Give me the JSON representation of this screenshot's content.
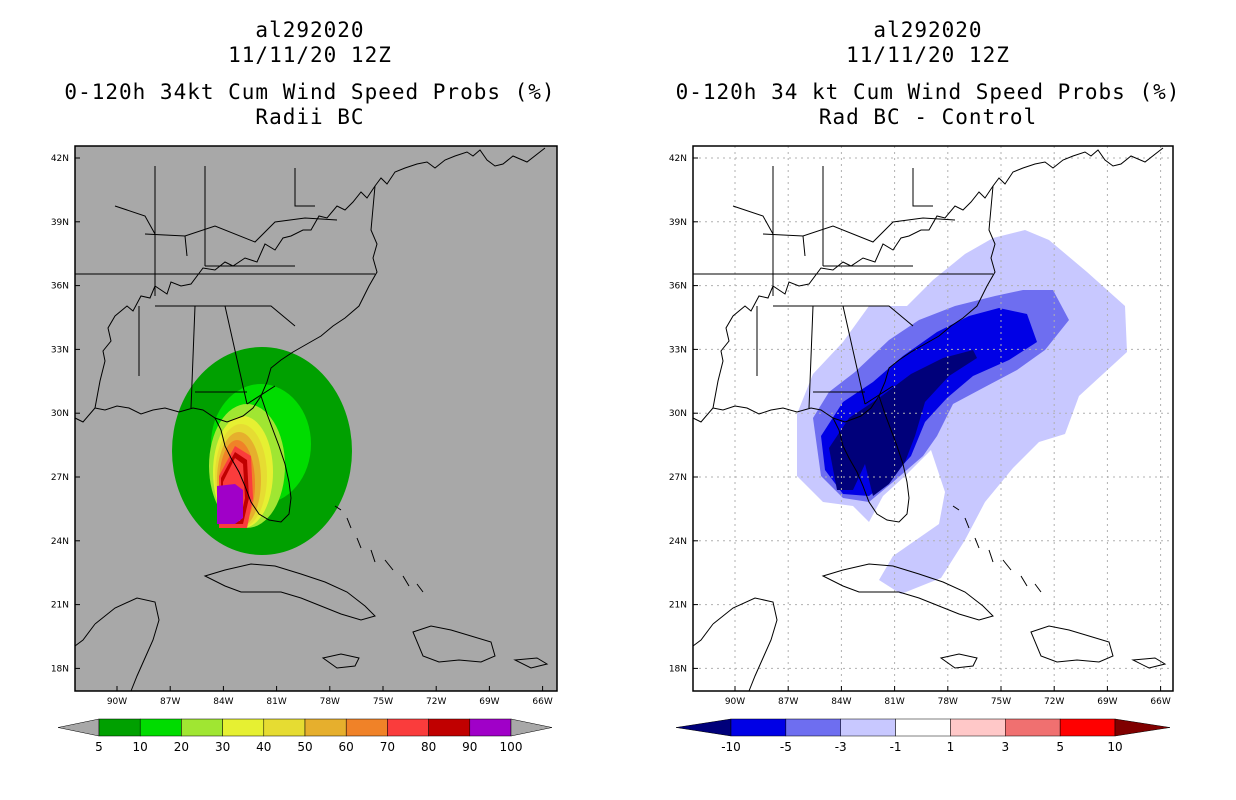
{
  "left_panel": {
    "storm_id": "al292020",
    "datetime": "11/11/20 12Z",
    "title": "0-120h 34kt Cum Wind Speed Probs (%)",
    "subtitle": "Radii BC",
    "background_color": "#a8a8a8",
    "lat_labels": [
      "42N",
      "39N",
      "36N",
      "33N",
      "30N",
      "27N",
      "24N",
      "21N",
      "18N"
    ],
    "lon_labels": [
      "90W",
      "87W",
      "84W",
      "81W",
      "78W",
      "75W",
      "72W",
      "69W",
      "66W"
    ],
    "colorbar": {
      "colors": [
        "#00a000",
        "#00dc00",
        "#a0e632",
        "#e6f032",
        "#e6dc32",
        "#e6af2d",
        "#f08228",
        "#fa3c3c",
        "#c00000",
        "#a000c8"
      ],
      "labels": [
        "5",
        "10",
        "20",
        "30",
        "40",
        "50",
        "60",
        "70",
        "80",
        "90",
        "100"
      ],
      "under_color": "#a8a8a8",
      "over_color": "#a8a8a8"
    }
  },
  "right_panel": {
    "storm_id": "al292020",
    "datetime": "11/11/20 12Z",
    "title": "0-120h 34 kt Cum Wind Speed Probs (%)",
    "subtitle": "Rad BC - Control",
    "background_color": "#ffffff",
    "lat_labels": [
      "42N",
      "39N",
      "36N",
      "33N",
      "30N",
      "27N",
      "24N",
      "21N",
      "18N"
    ],
    "lon_labels": [
      "90W",
      "87W",
      "84W",
      "81W",
      "78W",
      "75W",
      "72W",
      "69W",
      "66W"
    ],
    "colorbar": {
      "colors": [
        "#0000e6",
        "#6e6ef0",
        "#c8c8ff",
        "#ffffff",
        "#ffc8c8",
        "#f07070",
        "#ff0000"
      ],
      "labels": [
        "-10",
        "-5",
        "-3",
        "-1",
        "1",
        "3",
        "5",
        "10"
      ],
      "under_color": "#00007a",
      "over_color": "#800000"
    }
  }
}
